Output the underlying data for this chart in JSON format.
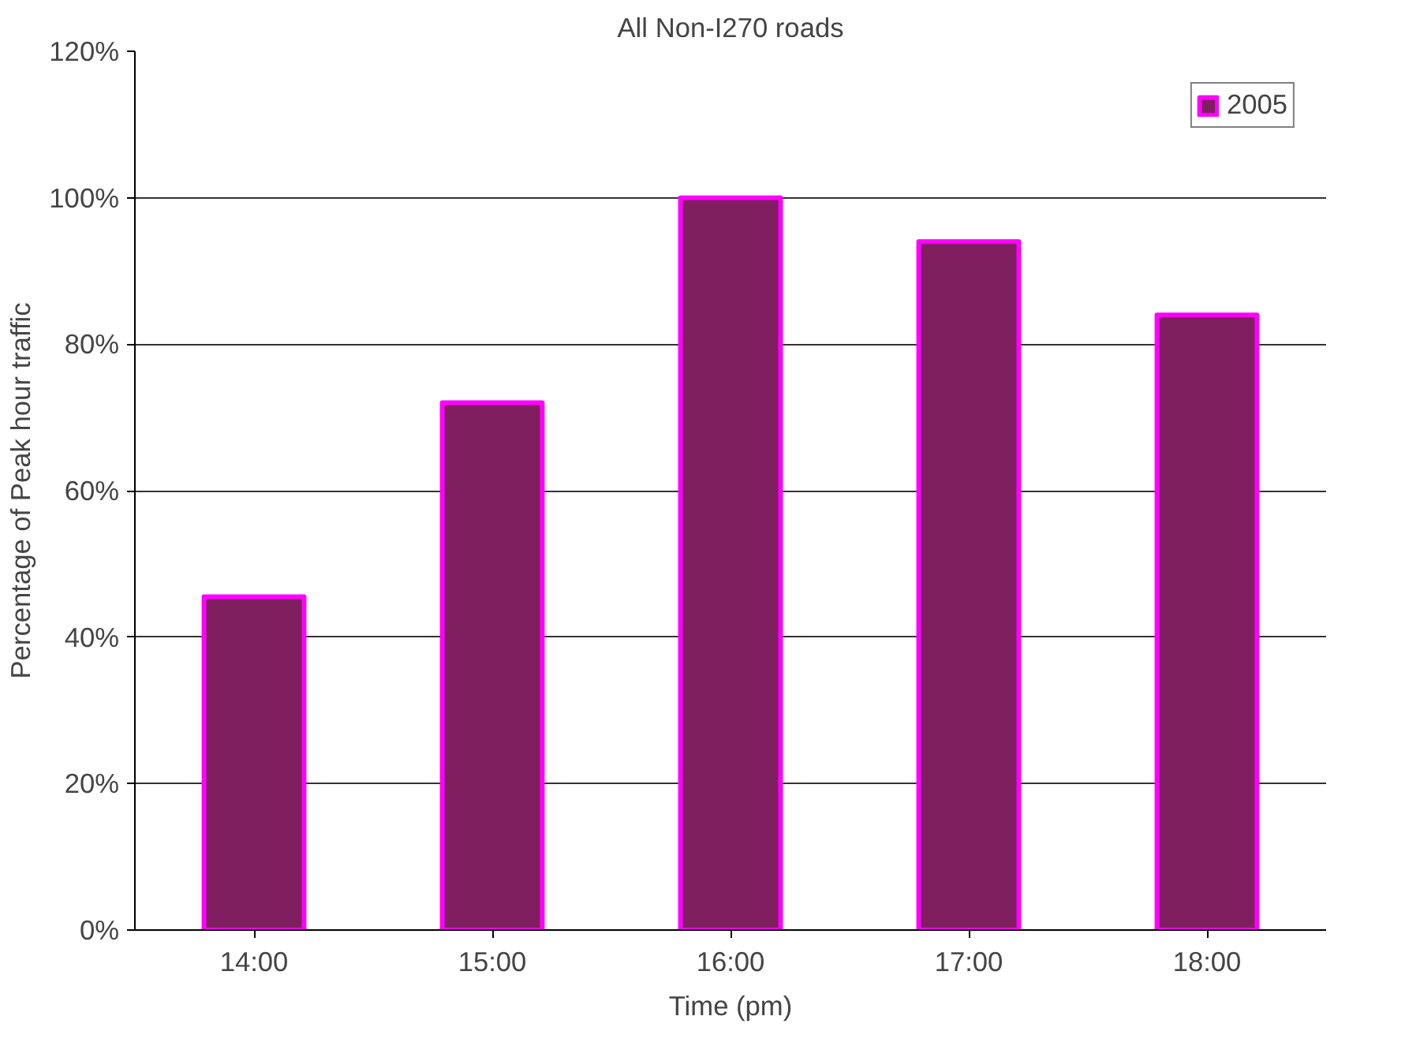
{
  "chart_data": {
    "type": "bar",
    "title": "All Non-I270 roads",
    "xlabel": "Time (pm)",
    "ylabel": "Percentage of Peak hour traffic",
    "categories": [
      "14:00",
      "15:00",
      "16:00",
      "17:00",
      "18:00"
    ],
    "series": [
      {
        "name": "2005",
        "color": "#7f1f5f",
        "values": [
          45.5,
          72,
          100,
          94,
          84
        ]
      }
    ],
    "ylim": [
      0,
      120
    ],
    "yticks": [
      {
        "value": 0,
        "label": "0%"
      },
      {
        "value": 20,
        "label": "20%"
      },
      {
        "value": 40,
        "label": "40%"
      },
      {
        "value": 60,
        "label": "60%"
      },
      {
        "value": 80,
        "label": "80%"
      },
      {
        "value": 100,
        "label": "100%"
      },
      {
        "value": 120,
        "label": "120%"
      }
    ],
    "grid": "y",
    "legend": "top right"
  }
}
